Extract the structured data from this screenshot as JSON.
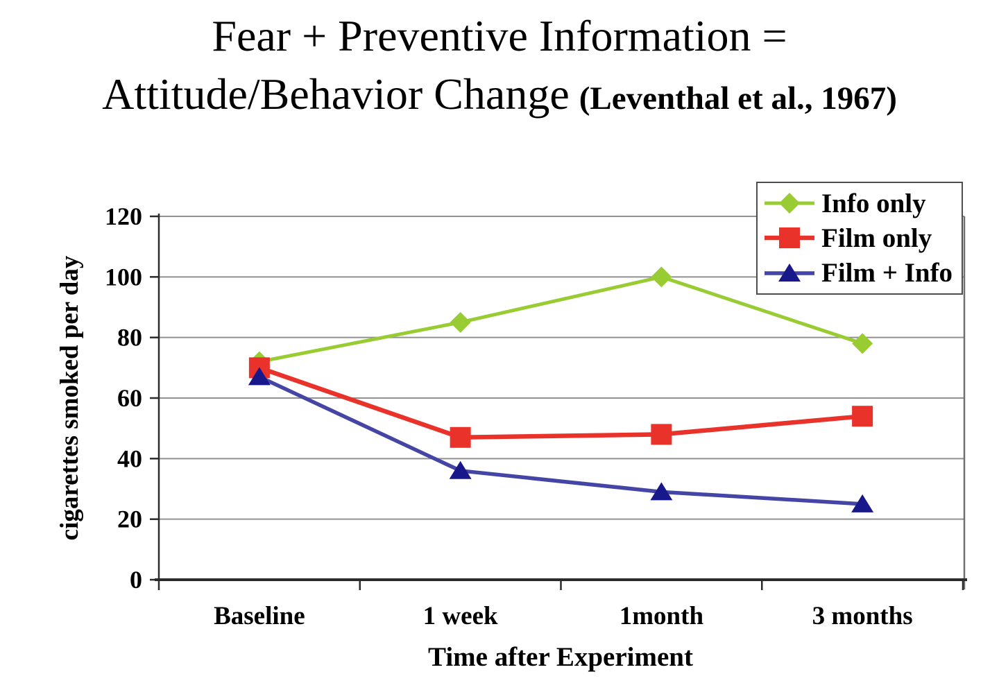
{
  "slide": {
    "title_line1": "Fear + Preventive Information =",
    "title_line2": "Attitude/Behavior Change",
    "title_citation": "(Leventhal et al., 1967)"
  },
  "chart_data": {
    "type": "line",
    "title": "Fear + Preventive Information = Attitude/Behavior Change (Leventhal et al., 1967)",
    "xlabel": "Time after Experiment",
    "ylabel": "cigarettes smoked per day",
    "categories": [
      "Baseline",
      "1 week",
      "1month",
      "3 months"
    ],
    "ylim": [
      0,
      120
    ],
    "yticks": [
      0,
      20,
      40,
      60,
      80,
      100,
      120
    ],
    "grid": true,
    "legend_position": "top-right",
    "series": [
      {
        "name": "Info only",
        "marker": "diamond",
        "line_color": "#99CC33",
        "marker_color": "#99CC33",
        "line_width": 5,
        "values": [
          72,
          85,
          100,
          78
        ]
      },
      {
        "name": "Film only",
        "marker": "square",
        "line_color": "#E8322A",
        "marker_color": "#E8322A",
        "line_width": 6.5,
        "values": [
          70,
          47,
          48,
          54
        ]
      },
      {
        "name": "Film + Info",
        "marker": "triangle",
        "line_color": "#4545A5",
        "marker_color": "#18188A",
        "line_width": 5.5,
        "values": [
          67,
          36,
          29,
          25
        ]
      }
    ],
    "colors": {
      "gridline": "#909090",
      "axis": "#2b2b2b",
      "plot_border": "#707070",
      "text": "#000000"
    }
  }
}
